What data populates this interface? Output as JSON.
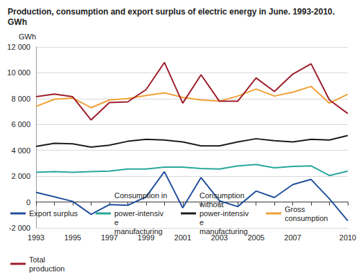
{
  "chart_data": {
    "type": "line",
    "title": "Production, consumption and export surplus of electric energy in June. 1993-2010. GWh",
    "y_label": "GWh",
    "categories": [
      "1993",
      null,
      "1995",
      null,
      "1997",
      null,
      "1999",
      null,
      "2001",
      null,
      "2003",
      null,
      "2005",
      null,
      "2007",
      null,
      null,
      "2010"
    ],
    "series": [
      {
        "name": "Export surplus",
        "color": "#1f4e9a",
        "values": [
          750,
          400,
          50,
          -950,
          -200,
          -250,
          400,
          2350,
          -450,
          1900,
          100,
          -350,
          850,
          350,
          1350,
          1750,
          250,
          -1450
        ]
      },
      {
        "name": "Consumption in power-intensive manufacturing",
        "color": "#26a69a",
        "values": [
          2300,
          2350,
          2300,
          2350,
          2400,
          2550,
          2550,
          2700,
          2700,
          2600,
          2550,
          2800,
          2900,
          2650,
          2750,
          2800,
          2050,
          2400
        ]
      },
      {
        "name": "Consumption without power-intensive manufacturing",
        "color": "#1a1a1a",
        "values": [
          4300,
          4550,
          4500,
          4250,
          4400,
          4700,
          4850,
          4800,
          4650,
          4350,
          4350,
          4650,
          4900,
          4750,
          4650,
          4850,
          4800,
          5150
        ]
      },
      {
        "name": "Gross consumption",
        "color": "#f0a035",
        "values": [
          7400,
          7950,
          8050,
          7300,
          7900,
          8000,
          8250,
          8450,
          8100,
          7900,
          7800,
          8200,
          8750,
          8200,
          8500,
          8950,
          7650,
          8350
        ]
      },
      {
        "name": "Total production",
        "color": "#9c1b2b",
        "values": [
          8150,
          8350,
          8150,
          6350,
          7700,
          7750,
          8700,
          10800,
          7650,
          9850,
          7800,
          7800,
          9600,
          8550,
          9900,
          10700,
          7900,
          6850
        ]
      }
    ],
    "ylim": [
      -2000,
      12000
    ],
    "yticks": [
      {
        "value": -2000,
        "label": "-2 000"
      },
      0,
      {
        "value": 2000,
        "label": "2 000"
      },
      {
        "value": 4000,
        "label": "4 000"
      },
      {
        "value": 6000,
        "label": "6 000"
      },
      {
        "value": 8000,
        "label": "8 000"
      },
      {
        "value": 10000,
        "label": "10 000"
      },
      {
        "value": 12000,
        "label": "12 000"
      }
    ],
    "grid": true,
    "legend": "bottom"
  }
}
